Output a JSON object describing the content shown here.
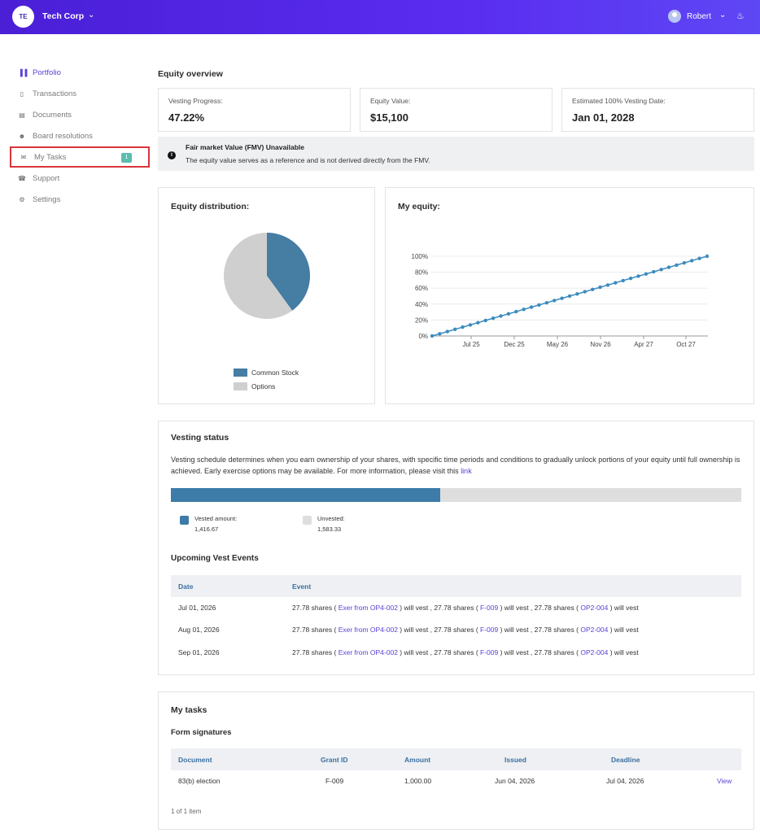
{
  "topbar": {
    "org_initials": "TE",
    "org_name": "Tech Corp",
    "user_name": "Robert",
    "gradient_start": "#4a1fd6",
    "gradient_end": "#5e47f5"
  },
  "sidebar": {
    "items": [
      {
        "label": "Portfolio",
        "icon": "portfolio-icon"
      },
      {
        "label": "Transactions",
        "icon": "clipboard-icon"
      },
      {
        "label": "Documents",
        "icon": "document-icon"
      },
      {
        "label": "Board resolutions",
        "icon": "people-icon"
      },
      {
        "label": "My Tasks",
        "icon": "inbox-icon",
        "badge": "1"
      },
      {
        "label": "Support",
        "icon": "support-icon"
      },
      {
        "label": "Settings",
        "icon": "gear-icon"
      }
    ],
    "active_color": "#5b3fd6",
    "highlight_color": "#d9343b"
  },
  "overview": {
    "title": "Equity overview",
    "stats": [
      {
        "label": "Vesting Progress:",
        "value": "47.22%"
      },
      {
        "label": "Equity Value:",
        "value": "$15,100"
      },
      {
        "label": "Estimated 100% Vesting Date:",
        "value": "Jan 01, 2028"
      }
    ],
    "notice_title": "Fair market Value (FMV) Unavailable",
    "notice_text": "The equity value serves as a reference and is not derived directly from the FMV."
  },
  "distribution": {
    "title": "Equity distribution:",
    "chart_data": {
      "type": "pie",
      "slices": [
        {
          "label": "Common Stock",
          "value": 40,
          "color": "#457da3"
        },
        {
          "label": "Options",
          "value": 60,
          "color": "#cfcfcf"
        }
      ]
    }
  },
  "my_equity": {
    "title": "My equity:",
    "chart_data": {
      "type": "line",
      "y_ticks": [
        "0%",
        "20%",
        "40%",
        "60%",
        "80%",
        "100%"
      ],
      "x_ticks": [
        "Jul 25",
        "Dec 25",
        "May 26",
        "Nov 26",
        "Apr 27",
        "Oct 27"
      ],
      "ylim": [
        0,
        100
      ],
      "points_count": 37,
      "start": 0,
      "end": 100,
      "color": "#3b8bbf"
    }
  },
  "vesting": {
    "title": "Vesting status",
    "description": "Vesting schedule determines when you earn ownership of your shares, with specific time periods and conditions to gradually unlock portions of your equity until full ownership is achieved. Early exercise options may be available. For more information, please visit this",
    "link_text": "link",
    "progress": 0.4722,
    "vested_label": "Vested amount:",
    "vested_value": "1,416.67",
    "vested_color": "#3d7ba8",
    "unvested_label": "Unvested:",
    "unvested_value": "1,583.33",
    "unvested_color": "#dedede",
    "events_title": "Upcoming Vest Events",
    "headers": [
      "Date",
      "Event"
    ],
    "rows": [
      {
        "date": "Jul 01, 2026",
        "a": "27.78 shares ( ",
        "l1": "Exer from OP4-002",
        "b": " ) will vest , 27.78 shares ( ",
        "l2": "F-009",
        "c": " ) will vest , 27.78 shares ( ",
        "l3": "OP2-004",
        "d": " ) will vest"
      },
      {
        "date": "Aug 01, 2026",
        "a": "27.78 shares ( ",
        "l1": "Exer from OP4-002",
        "b": " ) will vest , 27.78 shares ( ",
        "l2": "F-009",
        "c": " ) will vest , 27.78 shares ( ",
        "l3": "OP2-004",
        "d": " ) will vest"
      },
      {
        "date": "Sep 01, 2026",
        "a": "27.78 shares ( ",
        "l1": "Exer from OP4-002",
        "b": " ) will vest , 27.78 shares ( ",
        "l2": "F-009",
        "c": " ) will vest , 27.78 shares ( ",
        "l3": "OP2-004",
        "d": " ) will vest"
      }
    ]
  },
  "tasks": {
    "title": "My tasks",
    "subtitle": "Form signatures",
    "headers": [
      "Document",
      "Grant ID",
      "Amount",
      "Issued",
      "Deadline"
    ],
    "rows": [
      {
        "document": "83(b) election",
        "grant_id": "F-009",
        "amount": "1,000.00",
        "issued": "Jun 04, 2026",
        "deadline": "Jul 04, 2026",
        "action": "View"
      }
    ],
    "footer": "1 of 1 item"
  }
}
